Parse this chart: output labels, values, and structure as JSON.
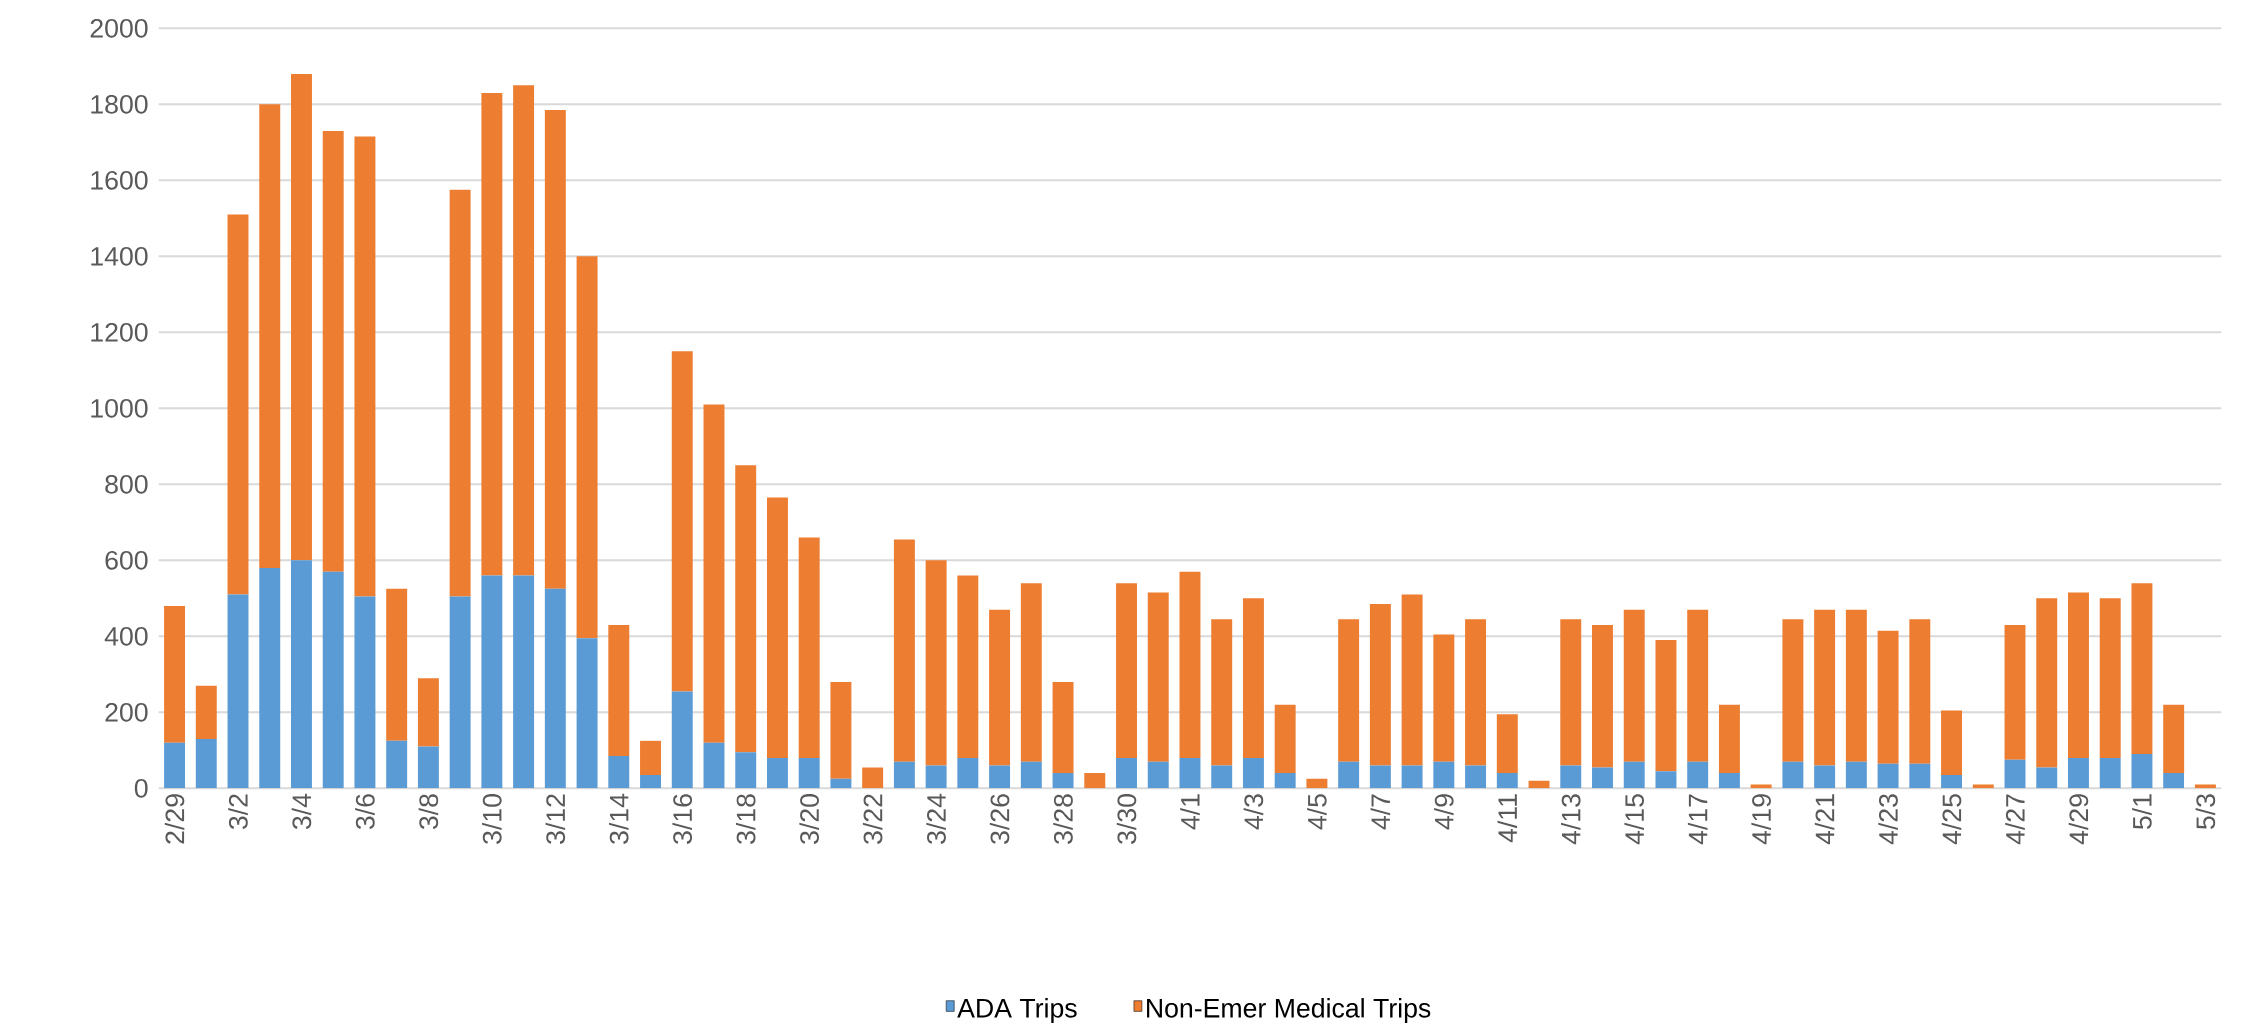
{
  "chart_data": {
    "type": "bar",
    "stacked": true,
    "categories": [
      "2/29",
      null,
      "3/2",
      null,
      "3/4",
      null,
      "3/6",
      null,
      "3/8",
      null,
      "3/10",
      null,
      "3/12",
      null,
      "3/14",
      null,
      "3/16",
      null,
      "3/18",
      null,
      "3/20",
      null,
      "3/22",
      null,
      "3/24",
      null,
      "3/26",
      null,
      "3/28",
      null,
      "3/30",
      null,
      "4/1",
      null,
      "4/3",
      null,
      "4/5",
      null,
      "4/7",
      null,
      "4/9",
      null,
      "4/11",
      null,
      "4/13",
      null,
      "4/15",
      null,
      "4/17",
      null,
      "4/19",
      null,
      "4/21",
      null,
      "4/23",
      null,
      "4/25",
      null,
      "4/27",
      null,
      "4/29",
      null,
      "5/1",
      null,
      "5/3"
    ],
    "series": [
      {
        "name": "ADA Trips",
        "color": "#5b9bd5",
        "values": [
          120,
          130,
          510,
          580,
          600,
          570,
          505,
          125,
          110,
          505,
          560,
          560,
          525,
          395,
          85,
          35,
          255,
          120,
          95,
          80,
          80,
          25,
          0,
          70,
          60,
          80,
          60,
          70,
          40,
          0,
          80,
          70,
          80,
          60,
          80,
          40,
          0,
          70,
          60,
          60,
          70,
          60,
          40,
          0,
          60,
          55,
          70,
          45,
          70,
          40,
          0,
          70,
          60,
          70,
          65,
          65,
          35,
          0,
          75,
          55,
          80,
          80,
          90,
          40,
          0
        ]
      },
      {
        "name": "Non-Emer Medical Trips",
        "color": "#ed7d31",
        "values": [
          360,
          140,
          1000,
          1220,
          1280,
          1160,
          1210,
          400,
          180,
          1070,
          1270,
          1290,
          1260,
          1005,
          345,
          90,
          895,
          890,
          755,
          685,
          580,
          255,
          55,
          585,
          540,
          480,
          410,
          470,
          240,
          40,
          460,
          445,
          490,
          385,
          420,
          180,
          25,
          375,
          425,
          450,
          335,
          385,
          155,
          20,
          385,
          375,
          400,
          345,
          400,
          180,
          10,
          375,
          410,
          400,
          350,
          380,
          170,
          10,
          355,
          445,
          435,
          420,
          450,
          180,
          10
        ]
      }
    ],
    "ylim": [
      0,
      2000
    ],
    "yticks": [
      0,
      200,
      400,
      600,
      800,
      1000,
      1200,
      1400,
      1600,
      1800,
      2000
    ],
    "grid": "y",
    "legend": "bottom"
  }
}
